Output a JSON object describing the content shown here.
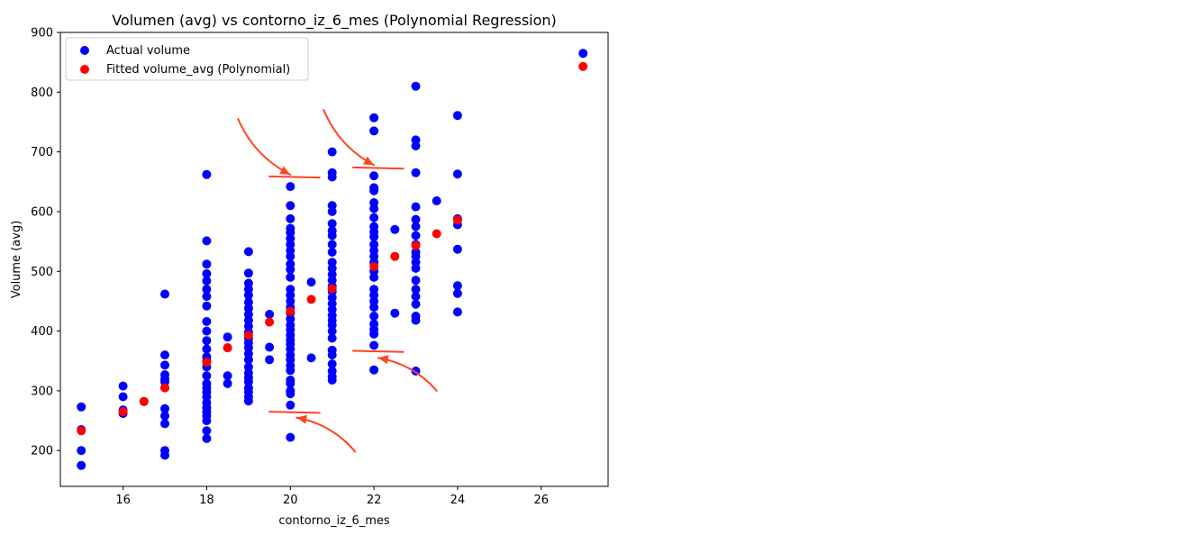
{
  "chart_data": {
    "type": "scatter",
    "title": "Volumen (avg) vs contorno_iz_6_mes (Polynomial Regression)",
    "xlabel": "contorno_iz_6_mes",
    "ylabel": "Volume (avg)",
    "xlim": [
      14.5,
      27.6
    ],
    "ylim": [
      140,
      900
    ],
    "xticks": [
      16,
      18,
      20,
      22,
      24,
      26
    ],
    "yticks": [
      200,
      300,
      400,
      500,
      600,
      700,
      800,
      900
    ],
    "grid": false,
    "legend_position": "top-left",
    "series": [
      {
        "name": "Actual volume",
        "color": "#0000ff",
        "points": [
          [
            15,
            175
          ],
          [
            15,
            200
          ],
          [
            15,
            235
          ],
          [
            15,
            273
          ],
          [
            16,
            262
          ],
          [
            16,
            268
          ],
          [
            16,
            290
          ],
          [
            16,
            308
          ],
          [
            16.5,
            282
          ],
          [
            17,
            192
          ],
          [
            17,
            200
          ],
          [
            17,
            245
          ],
          [
            17,
            258
          ],
          [
            17,
            270
          ],
          [
            17,
            305
          ],
          [
            17,
            315
          ],
          [
            17,
            320
          ],
          [
            17,
            327
          ],
          [
            17,
            343
          ],
          [
            17,
            360
          ],
          [
            17,
            462
          ],
          [
            18,
            220
          ],
          [
            18,
            233
          ],
          [
            18,
            250
          ],
          [
            18,
            258
          ],
          [
            18,
            265
          ],
          [
            18,
            272
          ],
          [
            18,
            280
          ],
          [
            18,
            290
          ],
          [
            18,
            298
          ],
          [
            18,
            305
          ],
          [
            18,
            312
          ],
          [
            18,
            325
          ],
          [
            18,
            340
          ],
          [
            18,
            350
          ],
          [
            18,
            357
          ],
          [
            18,
            370
          ],
          [
            18,
            384
          ],
          [
            18,
            400
          ],
          [
            18,
            416
          ],
          [
            18,
            442
          ],
          [
            18,
            458
          ],
          [
            18,
            470
          ],
          [
            18,
            484
          ],
          [
            18,
            496
          ],
          [
            18,
            512
          ],
          [
            18,
            551
          ],
          [
            18,
            662
          ],
          [
            18.5,
            312
          ],
          [
            18.5,
            325
          ],
          [
            18.5,
            372
          ],
          [
            18.5,
            390
          ],
          [
            19,
            283
          ],
          [
            19,
            290
          ],
          [
            19,
            298
          ],
          [
            19,
            305
          ],
          [
            19,
            315
          ],
          [
            19,
            322
          ],
          [
            19,
            330
          ],
          [
            19,
            340
          ],
          [
            19,
            352
          ],
          [
            19,
            362
          ],
          [
            19,
            372
          ],
          [
            19,
            380
          ],
          [
            19,
            388
          ],
          [
            19,
            398
          ],
          [
            19,
            408
          ],
          [
            19,
            418
          ],
          [
            19,
            428
          ],
          [
            19,
            438
          ],
          [
            19,
            448
          ],
          [
            19,
            460
          ],
          [
            19,
            470
          ],
          [
            19,
            480
          ],
          [
            19,
            497
          ],
          [
            19,
            533
          ],
          [
            19.5,
            352
          ],
          [
            19.5,
            373
          ],
          [
            19.5,
            428
          ],
          [
            20,
            222
          ],
          [
            20,
            276
          ],
          [
            20,
            295
          ],
          [
            20,
            300
          ],
          [
            20,
            312
          ],
          [
            20,
            318
          ],
          [
            20,
            334
          ],
          [
            20,
            342
          ],
          [
            20,
            352
          ],
          [
            20,
            360
          ],
          [
            20,
            370
          ],
          [
            20,
            378
          ],
          [
            20,
            385
          ],
          [
            20,
            393
          ],
          [
            20,
            402
          ],
          [
            20,
            410
          ],
          [
            20,
            420
          ],
          [
            20,
            430
          ],
          [
            20,
            440
          ],
          [
            20,
            450
          ],
          [
            20,
            460
          ],
          [
            20,
            470
          ],
          [
            20,
            490
          ],
          [
            20,
            503
          ],
          [
            20,
            512
          ],
          [
            20,
            525
          ],
          [
            20,
            535
          ],
          [
            20,
            545
          ],
          [
            20,
            555
          ],
          [
            20,
            565
          ],
          [
            20,
            572
          ],
          [
            20,
            588
          ],
          [
            20,
            610
          ],
          [
            20,
            642
          ],
          [
            20.5,
            355
          ],
          [
            20.5,
            482
          ],
          [
            21,
            318
          ],
          [
            21,
            324
          ],
          [
            21,
            333
          ],
          [
            21,
            345
          ],
          [
            21,
            360
          ],
          [
            21,
            368
          ],
          [
            21,
            388
          ],
          [
            21,
            400
          ],
          [
            21,
            410
          ],
          [
            21,
            418
          ],
          [
            21,
            426
          ],
          [
            21,
            436
          ],
          [
            21,
            446
          ],
          [
            21,
            456
          ],
          [
            21,
            466
          ],
          [
            21,
            475
          ],
          [
            21,
            485
          ],
          [
            21,
            495
          ],
          [
            21,
            505
          ],
          [
            21,
            515
          ],
          [
            21,
            532
          ],
          [
            21,
            545
          ],
          [
            21,
            560
          ],
          [
            21,
            568
          ],
          [
            21,
            580
          ],
          [
            21,
            600
          ],
          [
            21,
            610
          ],
          [
            21,
            658
          ],
          [
            21,
            665
          ],
          [
            21,
            700
          ],
          [
            22,
            335
          ],
          [
            22,
            376
          ],
          [
            22,
            395
          ],
          [
            22,
            403
          ],
          [
            22,
            412
          ],
          [
            22,
            425
          ],
          [
            22,
            440
          ],
          [
            22,
            450
          ],
          [
            22,
            460
          ],
          [
            22,
            470
          ],
          [
            22,
            490
          ],
          [
            22,
            500
          ],
          [
            22,
            515
          ],
          [
            22,
            525
          ],
          [
            22,
            535
          ],
          [
            22,
            545
          ],
          [
            22,
            558
          ],
          [
            22,
            566
          ],
          [
            22,
            575
          ],
          [
            22,
            590
          ],
          [
            22,
            605
          ],
          [
            22,
            615
          ],
          [
            22,
            635
          ],
          [
            22,
            640
          ],
          [
            22,
            660
          ],
          [
            22,
            735
          ],
          [
            22,
            757
          ],
          [
            22.5,
            430
          ],
          [
            22.5,
            570
          ],
          [
            23,
            333
          ],
          [
            23,
            418
          ],
          [
            23,
            425
          ],
          [
            23,
            445
          ],
          [
            23,
            458
          ],
          [
            23,
            470
          ],
          [
            23,
            485
          ],
          [
            23,
            505
          ],
          [
            23,
            515
          ],
          [
            23,
            525
          ],
          [
            23,
            532
          ],
          [
            23,
            545
          ],
          [
            23,
            560
          ],
          [
            23,
            575
          ],
          [
            23,
            587
          ],
          [
            23,
            608
          ],
          [
            23,
            665
          ],
          [
            23,
            710
          ],
          [
            23,
            720
          ],
          [
            23,
            810
          ],
          [
            23.5,
            618
          ],
          [
            24,
            432
          ],
          [
            24,
            463
          ],
          [
            24,
            476
          ],
          [
            24,
            537
          ],
          [
            24,
            578
          ],
          [
            24,
            588
          ],
          [
            24,
            663
          ],
          [
            24,
            761
          ],
          [
            27,
            865
          ]
        ]
      },
      {
        "name": "Fitted volume_avg (Polynomial)",
        "color": "#ff0000",
        "points": [
          [
            15,
            233
          ],
          [
            16,
            265
          ],
          [
            16.5,
            282
          ],
          [
            17,
            305
          ],
          [
            18,
            348
          ],
          [
            18.5,
            372
          ],
          [
            19,
            393
          ],
          [
            19.5,
            415
          ],
          [
            20,
            433
          ],
          [
            20.5,
            453
          ],
          [
            21,
            471
          ],
          [
            22,
            508
          ],
          [
            22.5,
            525
          ],
          [
            23,
            543
          ],
          [
            23.5,
            563
          ],
          [
            24,
            586
          ],
          [
            27,
            843
          ]
        ]
      }
    ],
    "annotations": {
      "color": "#ff4422",
      "arrows": [
        {
          "from": [
            18.75,
            755
          ],
          "to": [
            20.0,
            662
          ]
        },
        {
          "from": [
            20.8,
            770
          ],
          "to": [
            22.0,
            678
          ]
        },
        {
          "from": [
            23.5,
            300
          ],
          "to": [
            22.1,
            355
          ]
        },
        {
          "from": [
            21.55,
            198
          ],
          "to": [
            20.15,
            255
          ]
        }
      ],
      "brackets": [
        {
          "x": [
            19.5,
            20.7
          ],
          "y": [
            659,
            657
          ]
        },
        {
          "x": [
            21.5,
            22.7
          ],
          "y": [
            674,
            672
          ]
        },
        {
          "x": [
            21.5,
            22.7
          ],
          "y": [
            367,
            365
          ]
        },
        {
          "x": [
            19.5,
            20.7
          ],
          "y": [
            265,
            263
          ]
        }
      ]
    }
  }
}
